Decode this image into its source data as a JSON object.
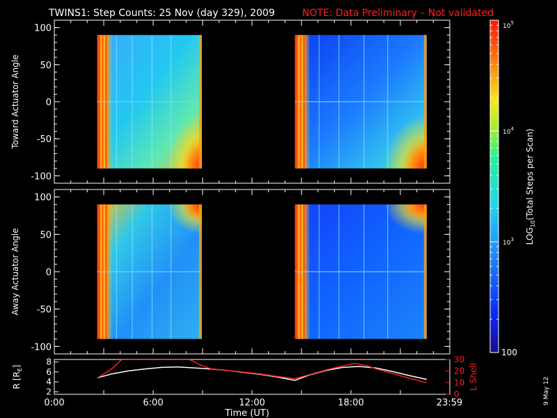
{
  "title_main": "TWINS1: Step Counts: 25 Nov (day 329), 2009",
  "title_note": "NOTE: Data Preliminary – Not validated",
  "date_stamp": "9 May 12",
  "colors": {
    "background": "#000000",
    "axis": "#ffffff",
    "note": "#ff2020",
    "ephem_r": "#ffffff",
    "ephem_lshell": "#ff2020"
  },
  "chart_data": [
    {
      "type": "heatmap",
      "ylabel": "Toward Actuator Angle",
      "xlim": [
        0,
        24
      ],
      "ylim": [
        -110,
        110
      ],
      "yticks": [
        -100,
        -50,
        0,
        50,
        100
      ],
      "xticks": [
        0,
        3,
        6,
        9,
        12,
        15,
        18,
        21,
        24
      ],
      "passes": [
        {
          "start": 2.6,
          "end": 8.95
        },
        {
          "start": 14.6,
          "end": 22.6
        }
      ],
      "angle_range": [
        -90,
        90
      ]
    },
    {
      "type": "heatmap",
      "ylabel": "Away Actuator Angle",
      "xlim": [
        0,
        24
      ],
      "ylim": [
        -110,
        110
      ],
      "yticks": [
        -100,
        -50,
        0,
        50,
        100
      ],
      "xticks": [
        0,
        3,
        6,
        9,
        12,
        15,
        18,
        21,
        24
      ],
      "passes": [
        {
          "start": 2.6,
          "end": 8.95
        },
        {
          "start": 14.6,
          "end": 22.6
        }
      ],
      "angle_range": [
        -90,
        90
      ]
    },
    {
      "type": "line",
      "ylabel_left": "R [R",
      "ylabel_left_sub": "E",
      "ylabel_left_close": "]",
      "ylabel_right": "L Shell",
      "xlabel": "Time (UT)",
      "xlim": [
        0,
        24
      ],
      "ylim_left": [
        1.5,
        8.5
      ],
      "yticks_left": [
        "2",
        "4",
        "6",
        "8"
      ],
      "ylim_right": [
        0,
        30
      ],
      "yticks_right": [
        "0",
        "10",
        "20",
        "30"
      ],
      "xtick_labels": [
        {
          "t": 0,
          "label": "0:00"
        },
        {
          "t": 6,
          "label": "6:00"
        },
        {
          "t": 12,
          "label": "12:00"
        },
        {
          "t": 18,
          "label": "18:00"
        },
        {
          "t": 23.983,
          "label": "23:59"
        }
      ],
      "series": [
        {
          "axis": "left",
          "x": [
            2.6,
            3.5,
            4.5,
            5.5,
            6.5,
            7.5,
            8.5,
            9.5,
            10.5,
            11.5,
            12.5,
            13.5,
            14.6,
            15.5,
            16.5,
            17.5,
            18.5,
            19.5,
            20.5,
            21.5,
            22.6
          ],
          "values": [
            4.8,
            5.6,
            6.2,
            6.6,
            6.9,
            7.0,
            6.8,
            6.6,
            6.3,
            5.9,
            5.5,
            5.0,
            4.3,
            5.4,
            6.3,
            6.9,
            7.1,
            6.8,
            6.1,
            5.3,
            4.5
          ]
        },
        {
          "axis": "right",
          "x": [
            2.6,
            3.5,
            4.1,
            8.2,
            8.9,
            9.5,
            10.5,
            11.5,
            12.5,
            13.5,
            14.6,
            15.5,
            16.5,
            17.5,
            18.2,
            18.9,
            19.5,
            20.5,
            21.5,
            22.6
          ],
          "values": [
            14,
            22,
            30,
            30,
            25,
            22,
            20.5,
            19,
            17.5,
            15.5,
            13.5,
            17,
            21,
            24.5,
            26.5,
            25,
            22,
            18,
            14,
            10
          ]
        }
      ]
    }
  ],
  "colorbar": {
    "scale": "log",
    "range": [
      100,
      100000
    ],
    "tick_100": "100",
    "tick_1e3_base": "10",
    "tick_1e3_exp": "3",
    "tick_1e4_base": "10",
    "tick_1e4_exp": "4",
    "tick_1e5_base": "10",
    "tick_1e5_exp": "5",
    "label_pre": "LOG",
    "label_sub": "10",
    "label_post": "(Total Steps per Scan)"
  }
}
